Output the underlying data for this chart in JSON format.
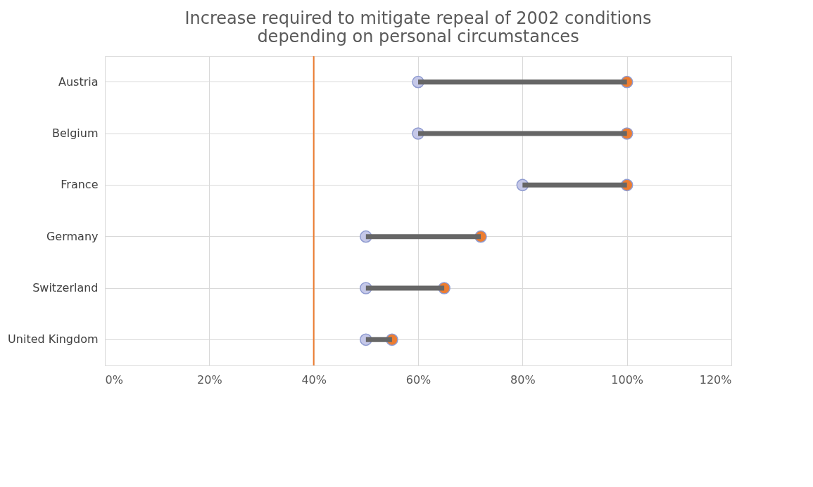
{
  "chart_data": {
    "type": "bar",
    "orientation": "horizontal",
    "title": "Increase required to mitigate repeal of 2002 conditions\ndepending on personal circumstances",
    "categories": [
      "Austria",
      "Belgium",
      "France",
      "Germany",
      "Switzerland",
      "United Kingdom"
    ],
    "series": [
      {
        "color": "#666666",
        "base": [
          60,
          60,
          80,
          50,
          50,
          50
        ],
        "values": [
          40,
          40,
          20,
          22,
          15,
          5
        ]
      },
      {
        "type": "scatter",
        "color": "#c5c8e8",
        "x": [
          "Austria",
          "Belgium",
          "France",
          "Germany",
          "Switzerland",
          "United Kingdom"
        ],
        "values": [
          60,
          60,
          80,
          50,
          50,
          50
        ]
      },
      {
        "type": "scatter",
        "color": "#ed7d31",
        "x": [
          "Austria",
          "Belgium",
          "France",
          "Germany",
          "Switzerland",
          "United Kingdom"
        ],
        "values": [
          100,
          100,
          100,
          72,
          65,
          55
        ]
      }
    ],
    "xlim": [
      0,
      120
    ],
    "xticks": [
      {
        "value": 0,
        "label": "0%"
      },
      {
        "value": 20,
        "label": "20%"
      },
      {
        "value": 40,
        "label": "40%"
      },
      {
        "value": 60,
        "label": "60%"
      },
      {
        "value": 80,
        "label": "80%"
      },
      {
        "value": 100,
        "label": "100%"
      },
      {
        "value": 120,
        "label": "120%"
      }
    ],
    "ref_lines": [
      {
        "axis": "x",
        "value": 40,
        "color": "#ed7d31"
      }
    ],
    "grid": true,
    "marker": "circle"
  }
}
